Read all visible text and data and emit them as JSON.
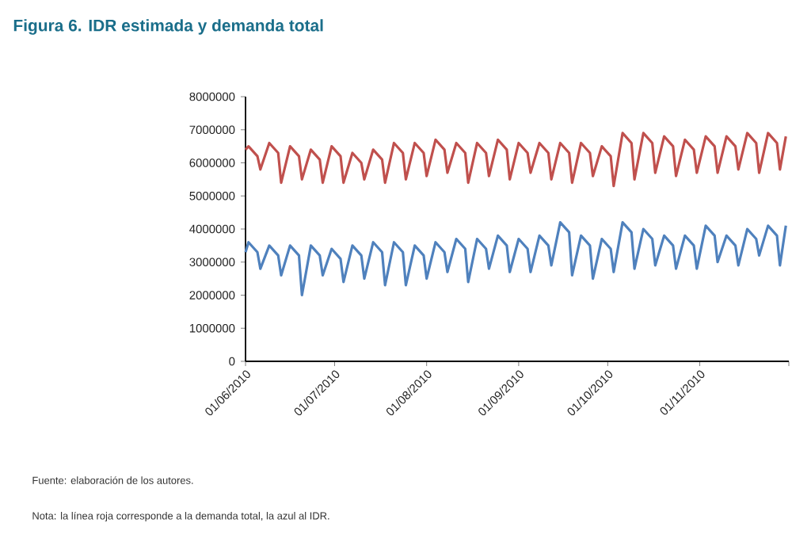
{
  "chart_data": {
    "type": "line",
    "title": "Figura 6. IDR estimada y demanda total",
    "annotations": [
      "Fuente: elaboración de los autores.",
      "Nota: la línea roja corresponde a la demanda total, la azul al IDR."
    ],
    "x": [
      "2010-06-01",
      "2010-06-02",
      "2010-06-05",
      "2010-06-06",
      "2010-06-09",
      "2010-06-12",
      "2010-06-13",
      "2010-06-16",
      "2010-06-19",
      "2010-06-20",
      "2010-06-23",
      "2010-06-26",
      "2010-06-27",
      "2010-06-30",
      "2010-07-03",
      "2010-07-04",
      "2010-07-07",
      "2010-07-10",
      "2010-07-11",
      "2010-07-14",
      "2010-07-17",
      "2010-07-18",
      "2010-07-21",
      "2010-07-24",
      "2010-07-25",
      "2010-07-28",
      "2010-07-31",
      "2010-08-01",
      "2010-08-04",
      "2010-08-07",
      "2010-08-08",
      "2010-08-11",
      "2010-08-14",
      "2010-08-15",
      "2010-08-18",
      "2010-08-21",
      "2010-08-22",
      "2010-08-25",
      "2010-08-28",
      "2010-08-29",
      "2010-09-01",
      "2010-09-04",
      "2010-09-05",
      "2010-09-08",
      "2010-09-11",
      "2010-09-12",
      "2010-09-15",
      "2010-09-18",
      "2010-09-19",
      "2010-09-22",
      "2010-09-25",
      "2010-09-26",
      "2010-09-29",
      "2010-10-02",
      "2010-10-03",
      "2010-10-06",
      "2010-10-09",
      "2010-10-10",
      "2010-10-13",
      "2010-10-16",
      "2010-10-17",
      "2010-10-20",
      "2010-10-23",
      "2010-10-24",
      "2010-10-27",
      "2010-10-30",
      "2010-10-31",
      "2010-11-03",
      "2010-11-06",
      "2010-11-07",
      "2010-11-10",
      "2010-11-13",
      "2010-11-14",
      "2010-11-17",
      "2010-11-20",
      "2010-11-21",
      "2010-11-24",
      "2010-11-27",
      "2010-11-28",
      "2010-11-30"
    ],
    "series": [
      {
        "color": "#c0504d",
        "values": [
          6400000,
          6500000,
          6200000,
          5800000,
          6600000,
          6300000,
          5400000,
          6500000,
          6200000,
          5500000,
          6400000,
          6100000,
          5400000,
          6500000,
          6200000,
          5400000,
          6300000,
          6000000,
          5500000,
          6400000,
          6100000,
          5400000,
          6600000,
          6300000,
          5500000,
          6600000,
          6300000,
          5600000,
          6700000,
          6400000,
          5700000,
          6600000,
          6300000,
          5400000,
          6600000,
          6300000,
          5600000,
          6700000,
          6400000,
          5500000,
          6600000,
          6300000,
          5700000,
          6600000,
          6300000,
          5500000,
          6600000,
          6300000,
          5400000,
          6600000,
          6300000,
          5600000,
          6500000,
          6200000,
          5300000,
          6900000,
          6600000,
          5500000,
          6900000,
          6600000,
          5700000,
          6800000,
          6500000,
          5600000,
          6700000,
          6400000,
          5700000,
          6800000,
          6500000,
          5700000,
          6800000,
          6500000,
          5800000,
          6900000,
          6600000,
          5700000,
          6900000,
          6600000,
          5800000,
          6800000
        ]
      },
      {
        "color": "#4f81bd",
        "values": [
          3300000,
          3600000,
          3300000,
          2800000,
          3500000,
          3200000,
          2600000,
          3500000,
          3200000,
          2000000,
          3500000,
          3200000,
          2600000,
          3400000,
          3100000,
          2400000,
          3500000,
          3200000,
          2500000,
          3600000,
          3300000,
          2300000,
          3600000,
          3300000,
          2300000,
          3500000,
          3200000,
          2500000,
          3600000,
          3300000,
          2700000,
          3700000,
          3400000,
          2400000,
          3700000,
          3400000,
          2800000,
          3800000,
          3500000,
          2700000,
          3700000,
          3400000,
          2700000,
          3800000,
          3500000,
          2900000,
          4200000,
          3900000,
          2600000,
          3800000,
          3500000,
          2500000,
          3700000,
          3400000,
          2700000,
          4200000,
          3900000,
          2800000,
          4000000,
          3700000,
          2900000,
          3800000,
          3500000,
          2800000,
          3800000,
          3500000,
          2800000,
          4100000,
          3800000,
          3000000,
          3800000,
          3500000,
          2900000,
          4000000,
          3700000,
          3200000,
          4100000,
          3800000,
          2900000,
          4100000
        ]
      }
    ],
    "xlim": [
      "2010-06-01",
      "2010-12-01"
    ],
    "xticks": [
      {
        "value": "2010-06-01",
        "label": "01/06/2010"
      },
      {
        "value": "2010-07-01",
        "label": "01/07/2010"
      },
      {
        "value": "2010-08-01",
        "label": "01/08/2010"
      },
      {
        "value": "2010-09-01",
        "label": "01/09/2010"
      },
      {
        "value": "2010-10-01",
        "label": "01/10/2010"
      },
      {
        "value": "2010-11-01",
        "label": "01/11/2010"
      },
      {
        "value": "2010-12-01",
        "label": null
      }
    ],
    "ylim": [
      0,
      8000000
    ],
    "yticks": [
      0,
      1000000,
      2000000,
      3000000,
      4000000,
      5000000,
      6000000,
      7000000,
      8000000
    ],
    "grid": false,
    "legend": false,
    "marker": "none",
    "line_style": "solid"
  }
}
